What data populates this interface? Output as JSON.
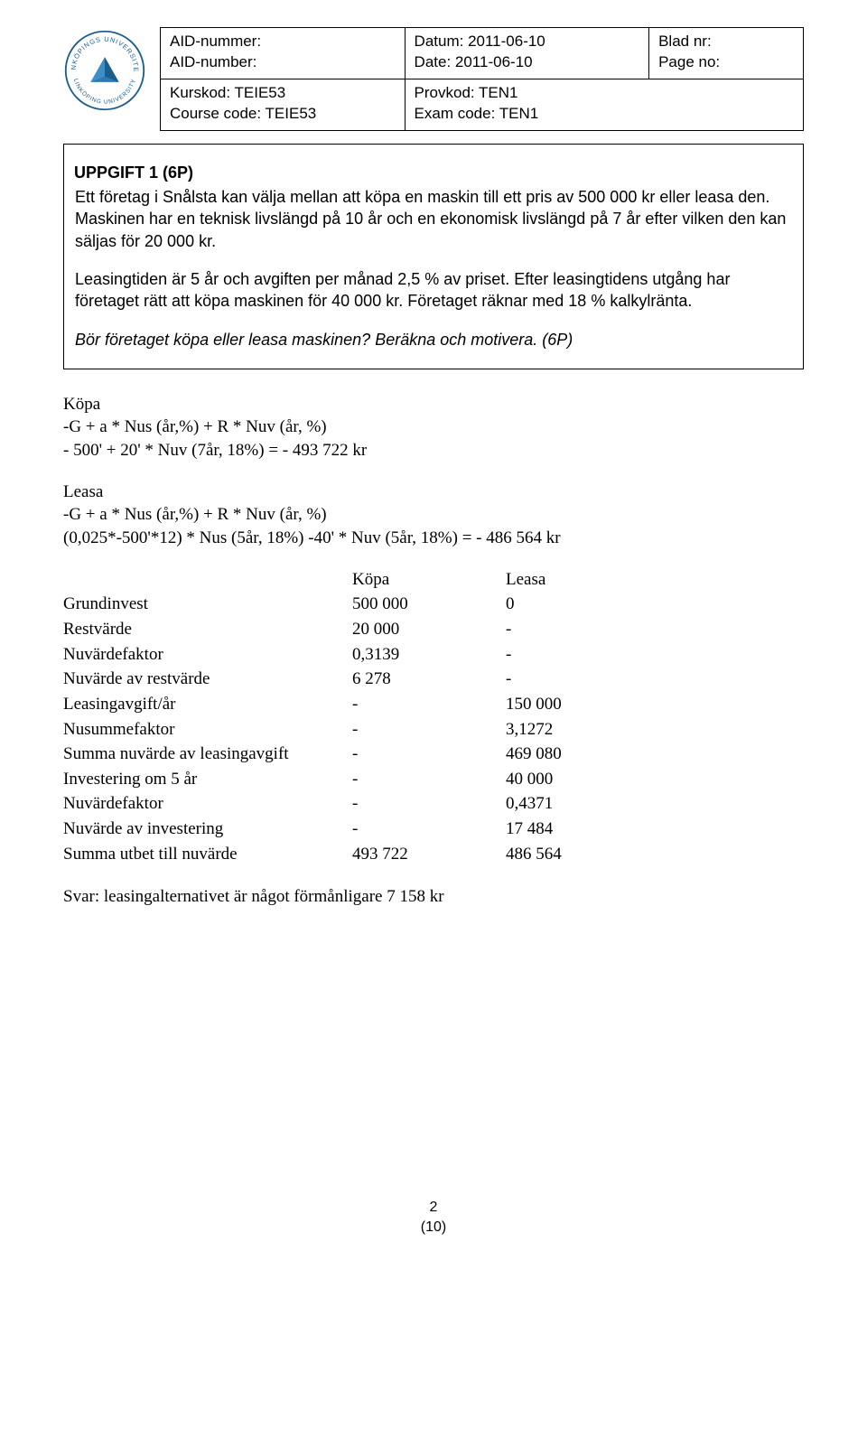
{
  "header": {
    "aid_sv": "AID-nummer:",
    "aid_en": "AID-number:",
    "date_sv": "Datum: 2011-06-10",
    "date_en": "Date: 2011-06-10",
    "page_sv": "Blad nr:",
    "page_en": "Page no:",
    "course_sv": "Kurskod: TEIE53",
    "course_en": "Course code: TEIE53",
    "exam_sv": "Provkod: TEN1",
    "exam_en": "Exam code: TEN1"
  },
  "task": {
    "title": "UPPGIFT 1 (6P)",
    "p1": "Ett företag i Snålsta kan välja mellan att köpa en maskin till ett pris av 500 000 kr eller leasa den. Maskinen har en teknisk livslängd på 10 år och en ekonomisk livslängd på 7 år efter vilken den kan säljas för 20 000 kr.",
    "p2": "Leasingtiden är 5 år och avgiften per månad 2,5 % av priset. Efter leasingtidens utgång har företaget rätt att köpa maskinen för 40 000 kr. Företaget räknar med 18 % kalkylränta.",
    "p3": "Bör företaget köpa eller leasa maskinen? Beräkna och motivera. (6P)"
  },
  "solution": {
    "kopa_label": "Köpa",
    "kopa_f1": "-G + a * Nus (år,%) + R * Nuv (år, %)",
    "kopa_f2": "- 500' + 20' * Nuv (7år, 18%) = - 493 722 kr",
    "leasa_label": "Leasa",
    "leasa_f1": "-G + a * Nus (år,%) + R * Nuv (år, %)",
    "leasa_f2": "(0,025*-500'*12) * Nus (5år, 18%) -40' * Nuv (5år, 18%) = - 486 564 kr"
  },
  "table": {
    "head_c2": "Köpa",
    "head_c3": "Leasa",
    "rows": [
      {
        "label": "Grundinvest",
        "c2": "500 000",
        "c3": "0"
      },
      {
        "label": "Restvärde",
        "c2": "20 000",
        "c3": "-"
      },
      {
        "label": "Nuvärdefaktor",
        "c2": "0,3139",
        "c3": "-"
      },
      {
        "label": "Nuvärde av restvärde",
        "c2": "6 278",
        "c3": "-"
      },
      {
        "label": "Leasingavgift/år",
        "c2": "-",
        "c3": "150 000"
      },
      {
        "label": "Nusummefaktor",
        "c2": "-",
        "c3": "3,1272"
      },
      {
        "label": "Summa nuvärde av leasingavgift",
        "c2": "-",
        "c3": "469 080"
      },
      {
        "label": "Investering om 5 år",
        "c2": "-",
        "c3": "40 000"
      },
      {
        "label": "Nuvärdefaktor",
        "c2": "-",
        "c3": "0,4371"
      },
      {
        "label": "Nuvärde av investering",
        "c2": "-",
        "c3": "17 484"
      },
      {
        "label": "Summa utbet till nuvärde",
        "c2": "493 722",
        "c3": "486 564"
      }
    ]
  },
  "answer": "Svar: leasingalternativet är något förmånligare 7 158 kr",
  "footer": {
    "page": "2",
    "total": "(10)"
  }
}
